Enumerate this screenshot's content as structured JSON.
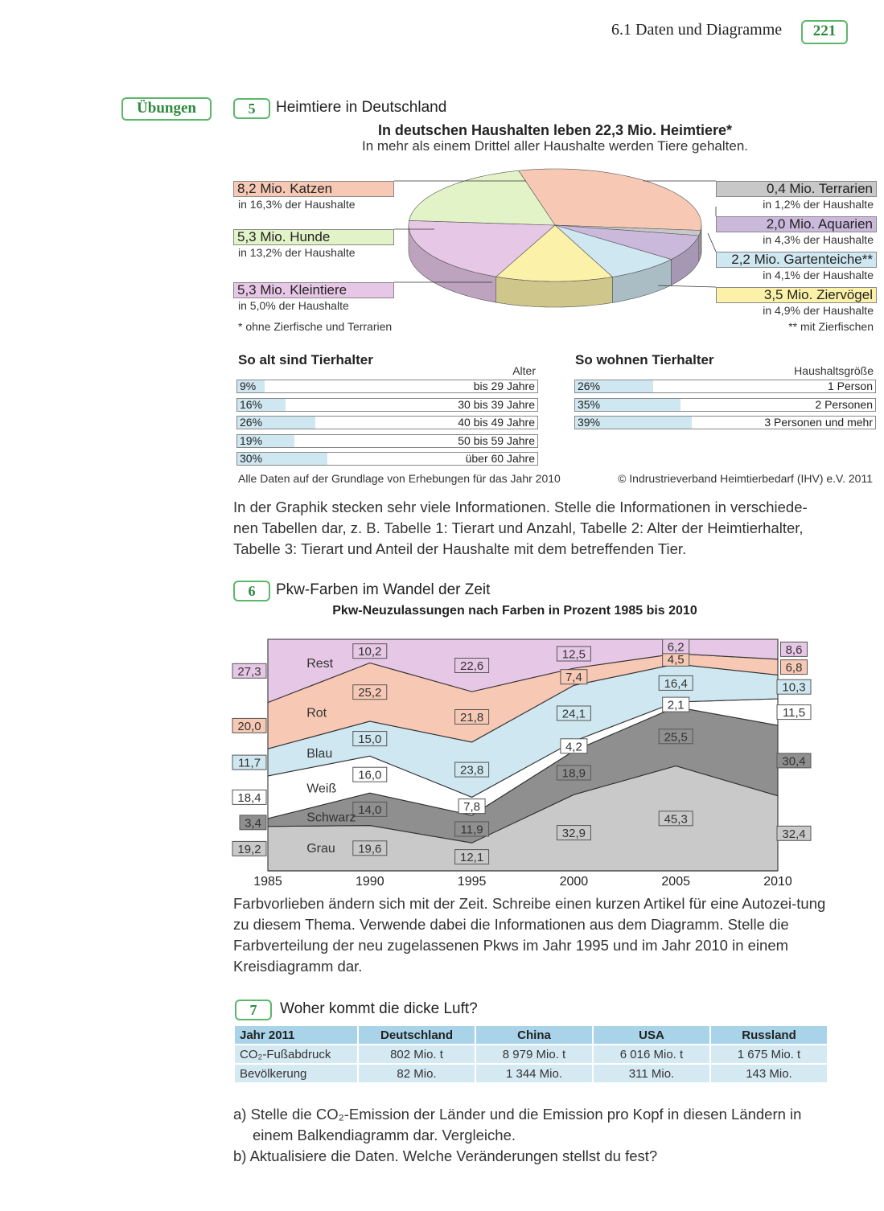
{
  "header": {
    "section": "6.1  Daten und Diagramme",
    "page": "221"
  },
  "badge": "Übungen",
  "ex5": {
    "num": "5",
    "title": "Heimtiere in Deutschland",
    "chart_title": "In deutschen Haushalten leben 22,3 Mio. Heimtiere*",
    "chart_subtitle": "In mehr als einem Drittel aller Haushalte werden Tiere gehalten.",
    "footnote1": "* ohne Zierfische und Terrarien",
    "footnote2": "** mit Zierfischen",
    "age_title": "So alt sind Tierhalter",
    "age_col": "Alter",
    "house_title": "So wohnen Tierhalter",
    "house_col": "Haushaltsgröße",
    "source_left": "Alle Daten auf der Grundlage von Erhebungen für das Jahr 2010",
    "source_right": "© Indrustrieverband Heimtierbedarf (IHV) e.V. 2011",
    "text": "In der Graphik stecken sehr viele Informationen. Stelle die Informationen in verschiede-nen Tabellen dar, z. B. Tabelle 1: Tierart und Anzahl,    Tabelle 2: Alter der Heimtierhalter, Tabelle 3: Tierart und Anteil der Haushalte mit dem betreffenden Tier."
  },
  "ex6": {
    "num": "6",
    "title": "Pkw-Farben im Wandel der Zeit",
    "text": "Farbvorlieben ändern sich mit der Zeit. Schreibe einen kurzen Artikel für eine Autozei-tung zu diesem Thema. Verwende dabei die Informationen aus dem Diagramm. Stelle die Farbverteilung der neu zugelassenen Pkws im Jahr 1995 und im Jahr 2010 in einem Kreisdiagramm dar."
  },
  "ex7": {
    "num": "7",
    "title": "Woher kommt die dicke Luft?",
    "headers": [
      "Jahr 2011",
      "Deutschland",
      "China",
      "USA",
      "Russland"
    ],
    "rows": [
      [
        "CO₂-Fußabdruck",
        "802 Mio. t",
        "8 979 Mio. t",
        "6 016 Mio. t",
        "1 675 Mio. t"
      ],
      [
        "Bevölkerung",
        "82 Mio.",
        "1 344 Mio.",
        "311 Mio.",
        "143 Mio."
      ]
    ],
    "task_a": "a) Stelle die CO₂-Emission der Länder und die Emission pro Kopf in diesen Ländern in",
    "task_a2": "einem Balkendiagramm dar. Vergleiche.",
    "task_b": "b) Aktualisiere die Daten. Welche Veränderungen stellst du fest?"
  },
  "chart_data": [
    {
      "type": "pie",
      "title": "In deutschen Haushalten leben 22,3 Mio. Heimtiere*",
      "subtitle": "In mehr als einem Drittel aller Haushalte werden Tiere gehalten.",
      "slices": [
        {
          "label": "8,2 Mio. Katzen",
          "value": 8.2,
          "sub": "in 16,3% der Haushalte",
          "color": "#f7c9b5"
        },
        {
          "label": "0,4  Mio. Terrarien",
          "value": 0.4,
          "sub": "in 1,2% der Haushalte",
          "color": "#c8c8c8"
        },
        {
          "label": "2,0 Mio. Aquarien",
          "value": 2.0,
          "sub": "in 4,3% der Haushalte",
          "color": "#cbb9dc"
        },
        {
          "label": "2,2 Mio. Gartenteiche**",
          "value": 2.2,
          "sub": "in 4,1% der Haushalte",
          "color": "#cfe7f0"
        },
        {
          "label": "3,5 Mio. Ziervögel",
          "value": 3.5,
          "sub": "in 4,9% der Haushalte",
          "color": "#fbf1a8"
        },
        {
          "label": "5,3 Mio. Kleintiere",
          "value": 5.3,
          "sub": "in 5,0% der Haushalte",
          "color": "#e7c7e6"
        },
        {
          "label": "5,3 Mio. Hunde",
          "value": 5.3,
          "sub": "in 13,2% der Haushalte",
          "color": "#e3f3c8"
        }
      ]
    },
    {
      "type": "bar",
      "title": "So alt sind Tierhalter",
      "value_label": "Alter",
      "categories": [
        "bis 29 Jahre",
        "30 bis 39 Jahre",
        "40 bis 49 Jahre",
        "50 bis 59 Jahre",
        "über 60 Jahre"
      ],
      "values": [
        9,
        16,
        26,
        19,
        30
      ],
      "labels": [
        "9%",
        "16%",
        "26%",
        "19%",
        "30%"
      ]
    },
    {
      "type": "bar",
      "title": "So wohnen Tierhalter",
      "value_label": "Haushaltsgröße",
      "categories": [
        "1 Person",
        "2 Personen",
        "3 Personen und mehr"
      ],
      "values": [
        26,
        35,
        39
      ],
      "labels": [
        "26%",
        "35%",
        "39%"
      ]
    },
    {
      "type": "area",
      "title": "Pkw-Neuzulassungen nach Farben in Prozent 1985 bis 2010",
      "x": [
        "1985",
        "1990",
        "1995",
        "2000",
        "2005",
        "2010"
      ],
      "ylim": [
        0,
        100
      ],
      "series": [
        {
          "name": "Grau",
          "values": [
            19.2,
            19.6,
            12.1,
            32.9,
            45.3,
            32.4
          ],
          "labels": [
            "19,2",
            "19,6",
            "12,1",
            "32,9",
            "45,3",
            "32,4"
          ],
          "color": "#c9c9c9"
        },
        {
          "name": "Schwarz",
          "values": [
            3.4,
            14.0,
            11.9,
            18.9,
            25.5,
            30.4
          ],
          "labels": [
            "3,4",
            "14,0",
            "11,9",
            "18,9",
            "25,5",
            "30,4"
          ],
          "color": "#8f8f8f"
        },
        {
          "name": "Weiß",
          "values": [
            18.4,
            16.0,
            7.8,
            4.2,
            2.1,
            11.5
          ],
          "labels": [
            "18,4",
            "16,0",
            "7,8",
            "4,2",
            "2,1",
            "11,5"
          ],
          "color": "#ffffff"
        },
        {
          "name": "Blau",
          "values": [
            11.7,
            15.0,
            23.8,
            24.1,
            16.4,
            10.3
          ],
          "labels": [
            "11,7",
            "15,0",
            "23,8",
            "24,1",
            "16,4",
            "10,3"
          ],
          "color": "#cfe7f0"
        },
        {
          "name": "Rot",
          "values": [
            20.0,
            25.2,
            21.8,
            7.4,
            4.5,
            6.8
          ],
          "labels": [
            "20,0",
            "25,2",
            "21,8",
            "7,4",
            "4,5",
            "6,8"
          ],
          "color": "#f7c9b5"
        },
        {
          "name": "Rest",
          "values": [
            27.3,
            10.2,
            22.6,
            12.5,
            6.2,
            8.6
          ],
          "labels": [
            "27,3",
            "10,2",
            "22,6",
            "12,5",
            "6,2",
            "8,6"
          ],
          "color": "#e7c7e6"
        }
      ]
    }
  ]
}
